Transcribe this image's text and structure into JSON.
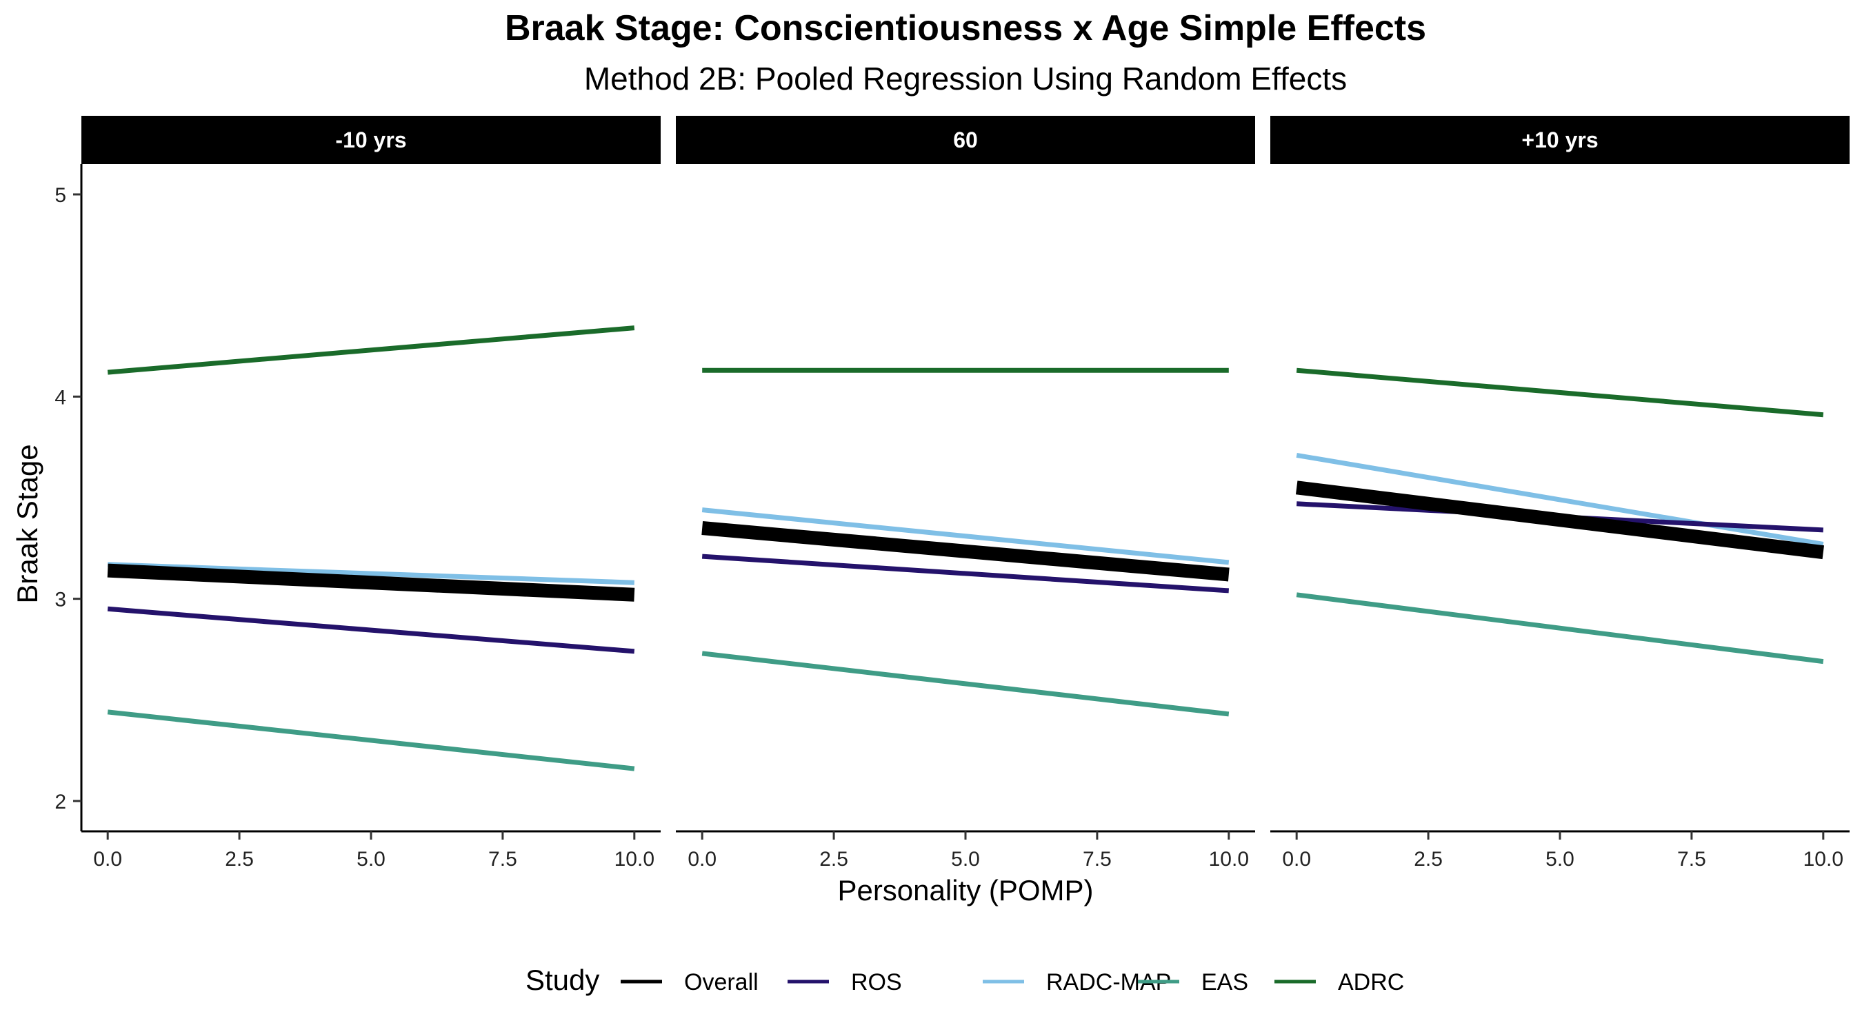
{
  "chart_data": {
    "type": "line",
    "title": "Braak Stage: Conscientiousness x Age Simple Effects",
    "subtitle": "Method 2B: Pooled Regression Using Random Effects",
    "xlabel": "Personality (POMP)",
    "ylabel": "Braak Stage",
    "xlim": [
      -0.5,
      10.5
    ],
    "ylim": [
      1.85,
      5.15
    ],
    "x_ticks": [
      0,
      2.5,
      5,
      7.5,
      10
    ],
    "x_tick_labels": [
      "0.0",
      "2.5",
      "5.0",
      "7.5",
      "10.0"
    ],
    "y_ticks": [
      2,
      3,
      4,
      5
    ],
    "y_tick_labels": [
      "2",
      "3",
      "4",
      "5"
    ],
    "grid": false,
    "legend": {
      "title": "Study",
      "position": "bottom",
      "entries": [
        "Overall",
        "ROS",
        "RADC-MAP",
        "EAS",
        "ADRC"
      ]
    },
    "series_styles": [
      {
        "name": "Overall",
        "color": "#000000",
        "weight": "thick"
      },
      {
        "name": "ROS",
        "color": "#24126b",
        "weight": "normal"
      },
      {
        "name": "RADC-MAP",
        "color": "#7fbfe6",
        "weight": "normal"
      },
      {
        "name": "EAS",
        "color": "#3f9c86",
        "weight": "normal"
      },
      {
        "name": "ADRC",
        "color": "#1a6b2a",
        "weight": "normal"
      }
    ],
    "panels": [
      {
        "label": "-10 yrs",
        "series": [
          {
            "name": "ADRC",
            "x": [
              0,
              10
            ],
            "values": [
              4.12,
              4.34
            ]
          },
          {
            "name": "RADC-MAP",
            "x": [
              0,
              10
            ],
            "values": [
              3.17,
              3.08
            ]
          },
          {
            "name": "ROS",
            "x": [
              0,
              10
            ],
            "values": [
              2.95,
              2.74
            ]
          },
          {
            "name": "EAS",
            "x": [
              0,
              10
            ],
            "values": [
              2.44,
              2.16
            ]
          },
          {
            "name": "Overall",
            "x": [
              0,
              10
            ],
            "values": [
              3.14,
              3.02
            ]
          }
        ]
      },
      {
        "label": "60",
        "series": [
          {
            "name": "ADRC",
            "x": [
              0,
              10
            ],
            "values": [
              4.13,
              4.13
            ]
          },
          {
            "name": "RADC-MAP",
            "x": [
              0,
              10
            ],
            "values": [
              3.44,
              3.18
            ]
          },
          {
            "name": "ROS",
            "x": [
              0,
              10
            ],
            "values": [
              3.21,
              3.04
            ]
          },
          {
            "name": "EAS",
            "x": [
              0,
              10
            ],
            "values": [
              2.73,
              2.43
            ]
          },
          {
            "name": "Overall",
            "x": [
              0,
              10
            ],
            "values": [
              3.35,
              3.12
            ]
          }
        ]
      },
      {
        "label": "+10 yrs",
        "series": [
          {
            "name": "ADRC",
            "x": [
              0,
              10
            ],
            "values": [
              4.13,
              3.91
            ]
          },
          {
            "name": "RADC-MAP",
            "x": [
              0,
              10
            ],
            "values": [
              3.71,
              3.27
            ]
          },
          {
            "name": "ROS",
            "x": [
              0,
              10
            ],
            "values": [
              3.47,
              3.34
            ]
          },
          {
            "name": "EAS",
            "x": [
              0,
              10
            ],
            "values": [
              3.02,
              2.69
            ]
          },
          {
            "name": "Overall",
            "x": [
              0,
              10
            ],
            "values": [
              3.55,
              3.23
            ]
          }
        ]
      }
    ]
  }
}
